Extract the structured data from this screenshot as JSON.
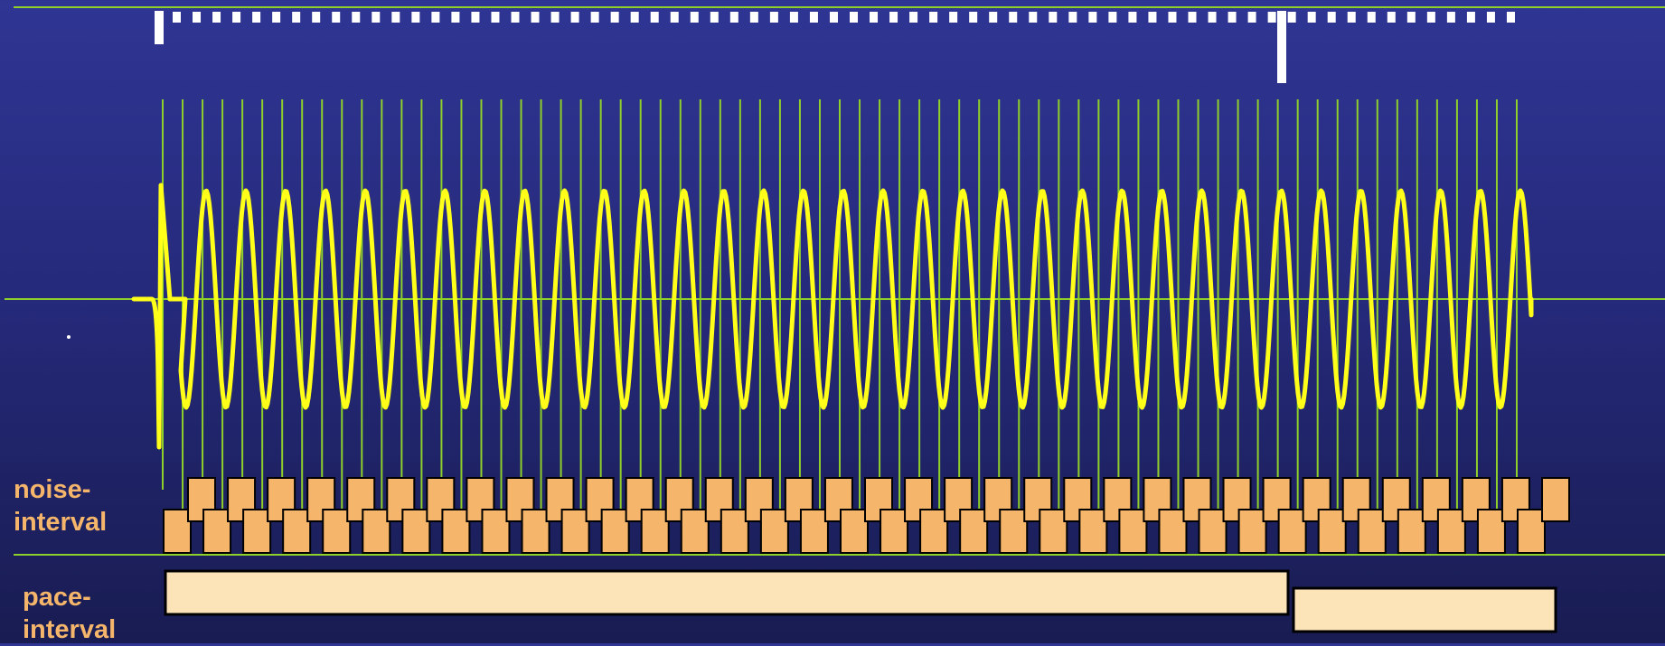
{
  "labels": {
    "noise_interval": "noise-\ninterval",
    "pace_interval": "pace-\ninterval"
  },
  "colors": {
    "background_top": "#2f3593",
    "background_bottom": "#191c52",
    "grid_line": "#8fcf2a",
    "waveform": "#ffff1a",
    "tick_marker": "#ffffff",
    "noise_block": "#f5b56a",
    "pace_block": "#fde4b8",
    "label_text": "#f5b56a"
  },
  "diagram": {
    "beat_count": 35,
    "noise_block_count": 70,
    "pace_block_count": 2,
    "tall_tick_beats": [
      0,
      29
    ]
  }
}
